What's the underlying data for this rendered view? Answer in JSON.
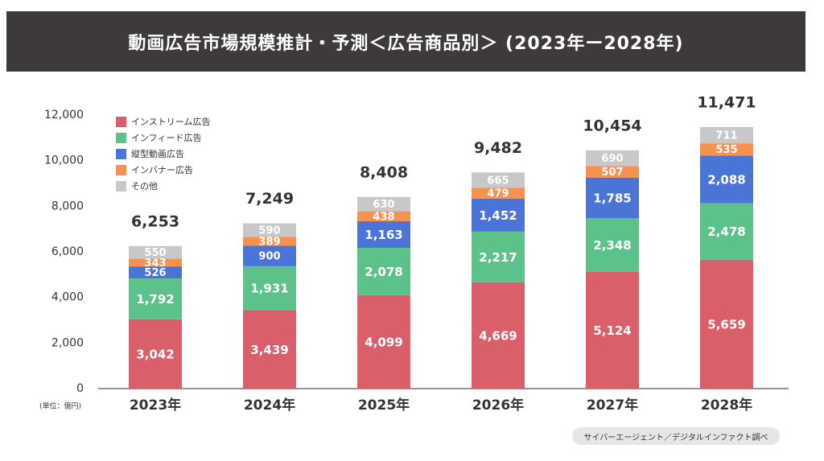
{
  "title": "動画広告市場規模推計・予測＜広告商品別＞ (2023年ー2028年)",
  "unit_note": "(単位：億円)",
  "source": "サイバーエージェント／デジタルインファクト調べ",
  "chart_data": {
    "type": "bar",
    "stacked": true,
    "categories": [
      "2023年",
      "2024年",
      "2025年",
      "2026年",
      "2027年",
      "2028年"
    ],
    "series": [
      {
        "name": "インストリーム広告",
        "color": "#d95f6a",
        "values": [
          3042,
          3439,
          4099,
          4669,
          5124,
          5659
        ]
      },
      {
        "name": "インフィード広告",
        "color": "#5dc18a",
        "values": [
          1792,
          1931,
          2078,
          2217,
          2348,
          2478
        ]
      },
      {
        "name": "縦型動画広告",
        "color": "#4a74d6",
        "values": [
          526,
          900,
          1163,
          1452,
          1785,
          2088
        ]
      },
      {
        "name": "インバナー広告",
        "color": "#f79150",
        "values": [
          343,
          389,
          438,
          479,
          507,
          535
        ]
      },
      {
        "name": "その他",
        "color": "#c8c8c8",
        "values": [
          550,
          590,
          630,
          665,
          690,
          711
        ]
      }
    ],
    "totals": [
      6253,
      7249,
      8408,
      9482,
      10454,
      11471
    ],
    "ylim": [
      0,
      12000
    ],
    "yticks": [
      0,
      2000,
      4000,
      6000,
      8000,
      10000,
      12000
    ],
    "legend_position": "top-left",
    "grid": false
  }
}
